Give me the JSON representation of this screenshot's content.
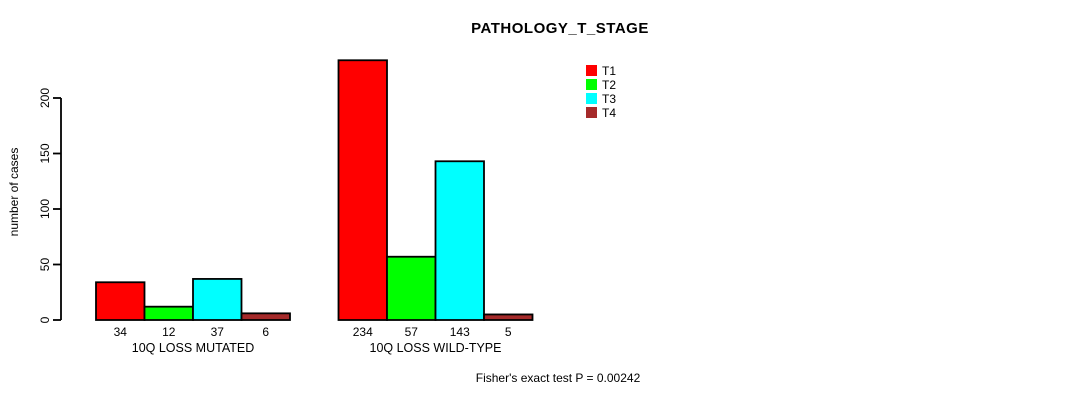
{
  "chart_data": {
    "type": "bar",
    "title": "PATHOLOGY_T_STAGE",
    "ylabel": "number of cases",
    "xlabel": "",
    "yticks": [
      0,
      50,
      100,
      150,
      200
    ],
    "ylim": [
      0,
      234
    ],
    "grid": false,
    "legend_position": "top-right",
    "categories": [
      "10Q LOSS MUTATED",
      "10Q LOSS WILD-TYPE"
    ],
    "series": [
      {
        "name": "T1",
        "color": "#FF0000",
        "values": [
          34,
          234
        ]
      },
      {
        "name": "T2",
        "color": "#00FF00",
        "values": [
          12,
          57
        ]
      },
      {
        "name": "T3",
        "color": "#00FFFF",
        "values": [
          37,
          143
        ]
      },
      {
        "name": "T4",
        "color": "#A52A2A",
        "values": [
          6,
          5
        ]
      }
    ],
    "bar_border_color": "#000000",
    "axis_color": "#000000",
    "annotation": "Fisher's exact test P = 0.00242"
  }
}
